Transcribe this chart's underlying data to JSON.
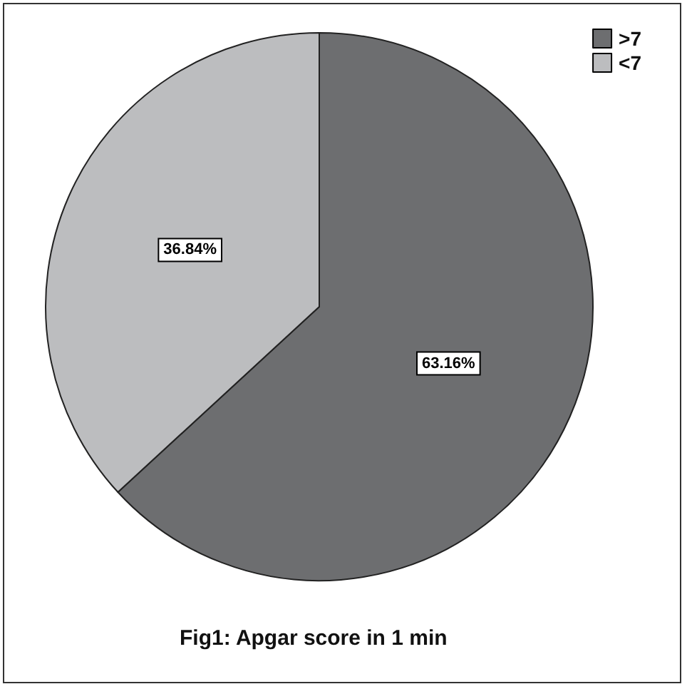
{
  "chart_data": {
    "type": "pie",
    "title": "Fig1: Apgar score in 1 min",
    "categories": [
      ">7",
      "<7"
    ],
    "values": [
      63.16,
      36.84
    ],
    "colors": [
      "#6d6e70",
      "#bcbdbf"
    ],
    "value_labels": [
      "63.16%",
      "36.84%"
    ],
    "legend": "top right"
  }
}
